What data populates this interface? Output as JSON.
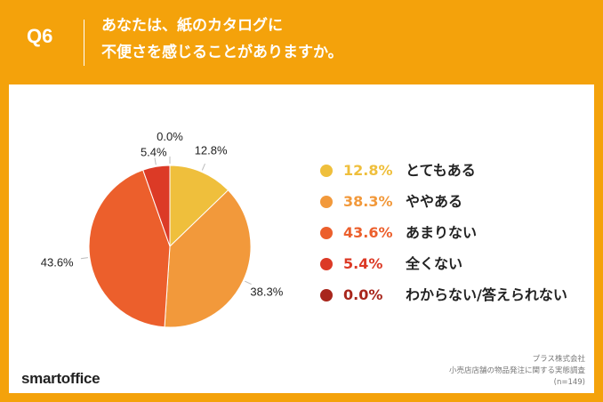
{
  "header": {
    "q_label": "Q6",
    "question_line1": "あなたは、紙のカタログに",
    "question_line2": "不便さを感じることがありますか。"
  },
  "chart_data": {
    "type": "pie",
    "slices": [
      {
        "label": "とてもある",
        "value": 12.8,
        "pct_text": "12.8%",
        "color": "#efbf3c"
      },
      {
        "label": "ややある",
        "value": 38.3,
        "pct_text": "38.3%",
        "color": "#f2993b"
      },
      {
        "label": "あまりない",
        "value": 43.6,
        "pct_text": "43.6%",
        "color": "#ec5f2c"
      },
      {
        "label": "全くない",
        "value": 5.4,
        "pct_text": "5.4%",
        "color": "#dc3a26"
      },
      {
        "label": "わからない/答えられない",
        "value": 0.0,
        "pct_text": "0.0%",
        "color": "#a8261c"
      }
    ],
    "legend_placement": "right"
  },
  "source": {
    "line1": "プラス株式会社",
    "line2": "小売店店舗の物品発注に関する実態調査",
    "line3": "(n=149)"
  },
  "brand": {
    "name": "smartoffice"
  }
}
